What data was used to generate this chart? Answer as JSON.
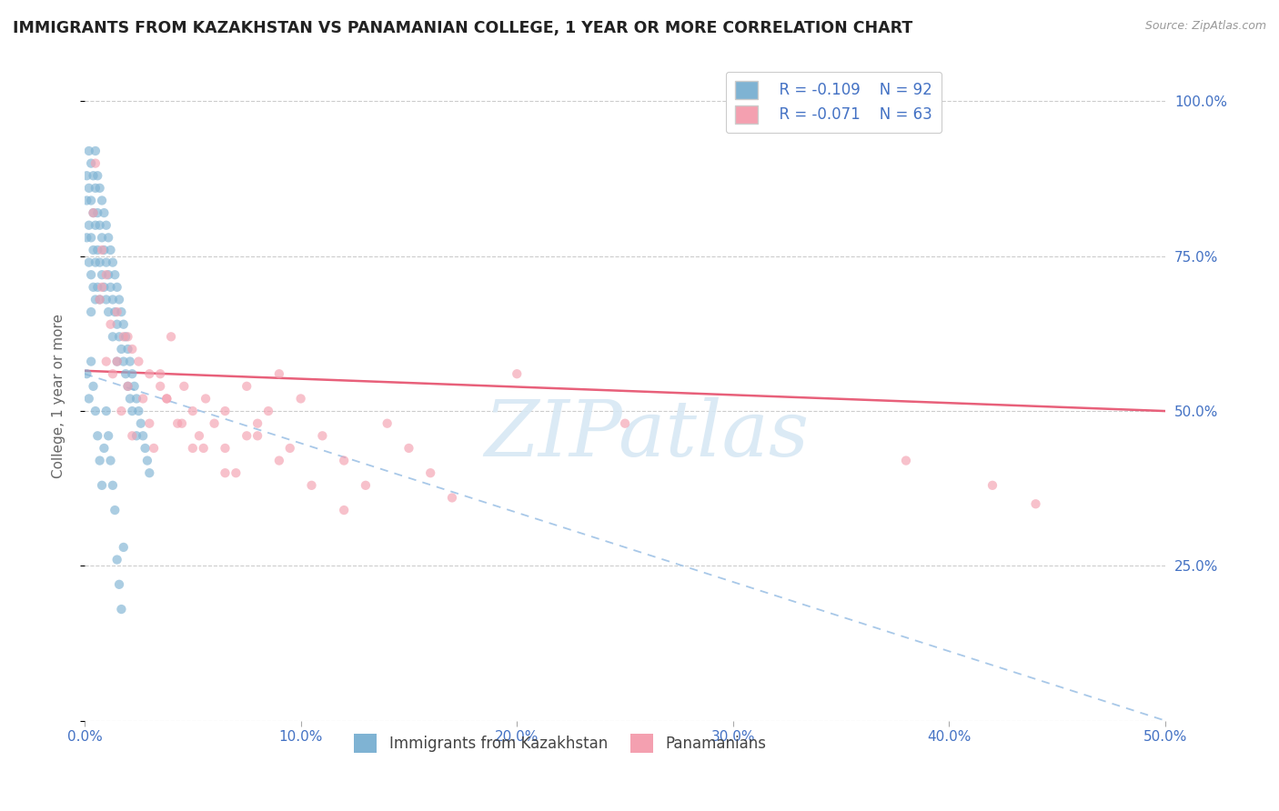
{
  "title": "IMMIGRANTS FROM KAZAKHSTAN VS PANAMANIAN COLLEGE, 1 YEAR OR MORE CORRELATION CHART",
  "source_text": "Source: ZipAtlas.com",
  "ylabel": "College, 1 year or more",
  "xlim": [
    0.0,
    0.5
  ],
  "ylim": [
    0.0,
    1.05
  ],
  "yticks": [
    0.0,
    0.25,
    0.5,
    0.75,
    1.0
  ],
  "ytick_labels": [
    "",
    "25.0%",
    "50.0%",
    "75.0%",
    "100.0%"
  ],
  "xticks": [
    0.0,
    0.1,
    0.2,
    0.3,
    0.4,
    0.5
  ],
  "xtick_labels": [
    "0.0%",
    "10.0%",
    "20.0%",
    "30.0%",
    "40.0%",
    "50.0%"
  ],
  "legend_R1": "R = -0.109",
  "legend_N1": "N = 92",
  "legend_R2": "R = -0.071",
  "legend_N2": "N = 63",
  "color_blue": "#7fb3d3",
  "color_pink": "#f4a0b0",
  "color_axis_labels": "#4472C4",
  "color_trendline_blue_solid": "#5b9bd5",
  "color_trendline_blue_dash": "#a8c8e8",
  "color_trendline_pink": "#e8607a",
  "watermark_color": "#d8e8f4",
  "kaz_x": [
    0.001,
    0.001,
    0.001,
    0.002,
    0.002,
    0.002,
    0.002,
    0.003,
    0.003,
    0.003,
    0.003,
    0.003,
    0.004,
    0.004,
    0.004,
    0.004,
    0.005,
    0.005,
    0.005,
    0.005,
    0.005,
    0.006,
    0.006,
    0.006,
    0.006,
    0.007,
    0.007,
    0.007,
    0.007,
    0.008,
    0.008,
    0.008,
    0.009,
    0.009,
    0.009,
    0.01,
    0.01,
    0.01,
    0.011,
    0.011,
    0.011,
    0.012,
    0.012,
    0.013,
    0.013,
    0.013,
    0.014,
    0.014,
    0.015,
    0.015,
    0.015,
    0.016,
    0.016,
    0.017,
    0.017,
    0.018,
    0.018,
    0.019,
    0.019,
    0.02,
    0.02,
    0.021,
    0.021,
    0.022,
    0.022,
    0.023,
    0.024,
    0.024,
    0.025,
    0.026,
    0.027,
    0.028,
    0.029,
    0.03,
    0.001,
    0.002,
    0.003,
    0.004,
    0.005,
    0.006,
    0.007,
    0.008,
    0.009,
    0.01,
    0.011,
    0.012,
    0.013,
    0.014,
    0.015,
    0.016,
    0.017,
    0.018
  ],
  "kaz_y": [
    0.88,
    0.84,
    0.78,
    0.92,
    0.86,
    0.8,
    0.74,
    0.9,
    0.84,
    0.78,
    0.72,
    0.66,
    0.88,
    0.82,
    0.76,
    0.7,
    0.92,
    0.86,
    0.8,
    0.74,
    0.68,
    0.88,
    0.82,
    0.76,
    0.7,
    0.86,
    0.8,
    0.74,
    0.68,
    0.84,
    0.78,
    0.72,
    0.82,
    0.76,
    0.7,
    0.8,
    0.74,
    0.68,
    0.78,
    0.72,
    0.66,
    0.76,
    0.7,
    0.74,
    0.68,
    0.62,
    0.72,
    0.66,
    0.7,
    0.64,
    0.58,
    0.68,
    0.62,
    0.66,
    0.6,
    0.64,
    0.58,
    0.62,
    0.56,
    0.6,
    0.54,
    0.58,
    0.52,
    0.56,
    0.5,
    0.54,
    0.52,
    0.46,
    0.5,
    0.48,
    0.46,
    0.44,
    0.42,
    0.4,
    0.56,
    0.52,
    0.58,
    0.54,
    0.5,
    0.46,
    0.42,
    0.38,
    0.44,
    0.5,
    0.46,
    0.42,
    0.38,
    0.34,
    0.26,
    0.22,
    0.18,
    0.28
  ],
  "pan_x": [
    0.004,
    0.005,
    0.007,
    0.008,
    0.01,
    0.012,
    0.013,
    0.015,
    0.017,
    0.018,
    0.02,
    0.022,
    0.025,
    0.027,
    0.03,
    0.032,
    0.035,
    0.038,
    0.04,
    0.043,
    0.046,
    0.05,
    0.053,
    0.056,
    0.06,
    0.065,
    0.07,
    0.075,
    0.08,
    0.085,
    0.09,
    0.095,
    0.1,
    0.11,
    0.12,
    0.13,
    0.14,
    0.15,
    0.16,
    0.17,
    0.008,
    0.015,
    0.022,
    0.03,
    0.038,
    0.045,
    0.055,
    0.065,
    0.075,
    0.09,
    0.105,
    0.12,
    0.01,
    0.02,
    0.035,
    0.05,
    0.065,
    0.08,
    0.2,
    0.25,
    0.38,
    0.42,
    0.44
  ],
  "pan_y": [
    0.82,
    0.9,
    0.68,
    0.76,
    0.72,
    0.64,
    0.56,
    0.58,
    0.5,
    0.62,
    0.54,
    0.46,
    0.58,
    0.52,
    0.48,
    0.44,
    0.56,
    0.52,
    0.62,
    0.48,
    0.54,
    0.5,
    0.46,
    0.52,
    0.48,
    0.44,
    0.4,
    0.54,
    0.46,
    0.5,
    0.56,
    0.44,
    0.52,
    0.46,
    0.42,
    0.38,
    0.48,
    0.44,
    0.4,
    0.36,
    0.7,
    0.66,
    0.6,
    0.56,
    0.52,
    0.48,
    0.44,
    0.5,
    0.46,
    0.42,
    0.38,
    0.34,
    0.58,
    0.62,
    0.54,
    0.44,
    0.4,
    0.48,
    0.56,
    0.48,
    0.42,
    0.38,
    0.35
  ],
  "trendline_kaz_x0": 0.0,
  "trendline_kaz_y0": 0.56,
  "trendline_kaz_x1": 0.5,
  "trendline_kaz_y1": 0.0,
  "trendline_pan_x0": 0.0,
  "trendline_pan_y0": 0.565,
  "trendline_pan_x1": 0.5,
  "trendline_pan_y1": 0.5
}
